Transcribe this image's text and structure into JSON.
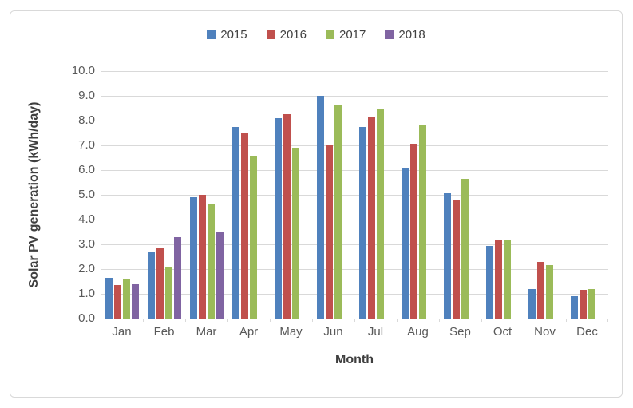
{
  "chart_data": {
    "type": "bar",
    "title": "",
    "xlabel": "Month",
    "ylabel": "Solar PV generation (kWh/day)",
    "categories": [
      "Jan",
      "Feb",
      "Mar",
      "Apr",
      "May",
      "Jun",
      "Jul",
      "Aug",
      "Sep",
      "Oct",
      "Nov",
      "Dec"
    ],
    "series": [
      {
        "name": "2015",
        "color": "#4F81BD",
        "values": [
          1.65,
          2.7,
          4.9,
          7.75,
          8.1,
          9.0,
          7.75,
          6.05,
          5.05,
          2.95,
          1.2,
          0.9
        ]
      },
      {
        "name": "2016",
        "color": "#C0504D",
        "values": [
          1.35,
          2.85,
          5.0,
          7.5,
          8.25,
          7.0,
          8.15,
          7.05,
          4.8,
          3.2,
          2.3,
          1.15
        ]
      },
      {
        "name": "2017",
        "color": "#9BBB59",
        "values": [
          1.6,
          2.05,
          4.65,
          6.55,
          6.9,
          8.65,
          8.45,
          7.8,
          5.65,
          3.15,
          2.15,
          1.2
        ]
      },
      {
        "name": "2018",
        "color": "#8064A2",
        "values": [
          1.4,
          3.3,
          3.5,
          null,
          null,
          null,
          null,
          null,
          null,
          null,
          null,
          null
        ]
      }
    ],
    "ylim": [
      0,
      10
    ],
    "ytick_step": 1,
    "ytick_labels": [
      "0.0",
      "1.0",
      "2.0",
      "3.0",
      "4.0",
      "5.0",
      "6.0",
      "7.0",
      "8.0",
      "9.0",
      "10.0"
    ],
    "legend_position": "top",
    "grid": true,
    "styles": {
      "gridline_color": "#D9D9D9",
      "tick_label_color": "#595959",
      "axis_title_color": "#3F3F3F",
      "legend_text_color": "#404040",
      "frame_border_color": "#D9D9D9",
      "background": "#FFFFFF"
    }
  }
}
